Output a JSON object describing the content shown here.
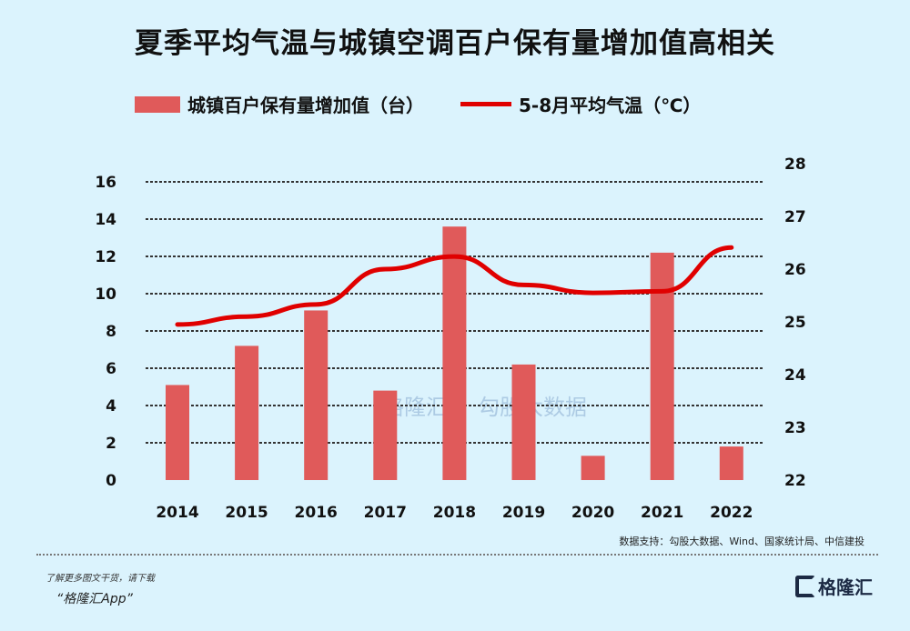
{
  "chart_data": {
    "type": "bar+line",
    "title": "夏季平均气温与城镇空调百户保有量增加值高相关",
    "categories": [
      "2014",
      "2015",
      "2016",
      "2017",
      "2018",
      "2019",
      "2020",
      "2021",
      "2022"
    ],
    "series": [
      {
        "name": "城镇百户保有量增加值（台）",
        "type": "bar",
        "axis": "left",
        "color": "#e05a5a",
        "values": [
          5.1,
          7.2,
          9.1,
          4.8,
          13.6,
          6.2,
          1.3,
          12.2,
          1.8
        ]
      },
      {
        "name": "5-8月平均气温（℃）",
        "type": "line",
        "axis": "right",
        "color": "#e00000",
        "values": [
          24.95,
          25.1,
          25.33,
          26.0,
          26.24,
          25.7,
          25.55,
          25.58,
          26.41
        ]
      }
    ],
    "y_left": {
      "lim": [
        0,
        16
      ],
      "ticks": [
        "0",
        "2",
        "4",
        "6",
        "8",
        "10",
        "12",
        "14",
        "16"
      ]
    },
    "y_right": {
      "lim": [
        22,
        28
      ],
      "ticks": [
        "22",
        "23",
        "24",
        "25",
        "26",
        "27",
        "28"
      ]
    },
    "grid": "horizontal dotted",
    "legend": "top"
  },
  "source": "数据支持：勾股大数据、Wind、国家统计局、中信建投",
  "watermark": {
    "left": "格隆汇",
    "right": "勾股大数据",
    "right_url": "www.gogudata.com"
  },
  "footer": {
    "promo_line": "了解更多图文干货，请下载",
    "app_name": "“格隆汇App”",
    "logo": "格隆汇"
  }
}
